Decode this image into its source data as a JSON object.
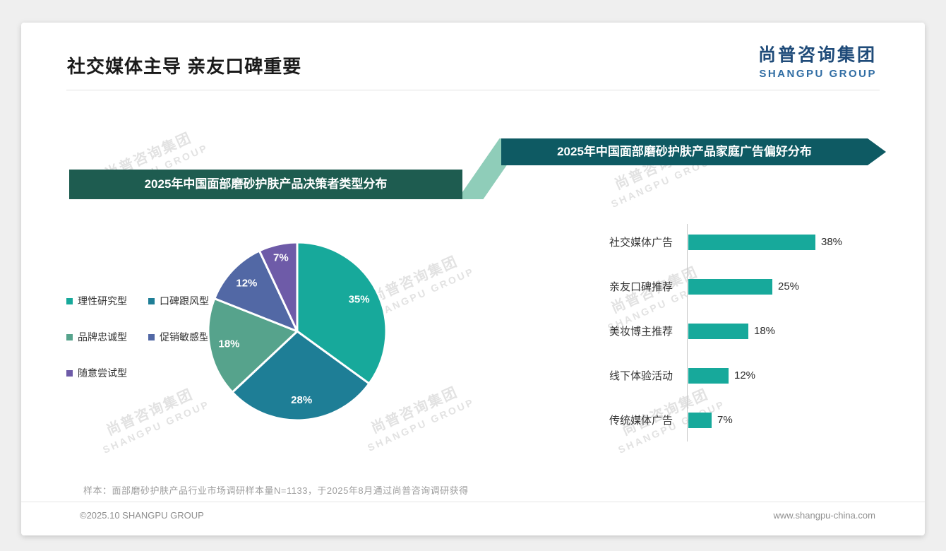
{
  "header": {
    "title": "社交媒体主导 亲友口碑重要"
  },
  "logo": {
    "cn": "尚普咨询集团",
    "en": "SHANGPU GROUP"
  },
  "watermark": {
    "cn": "尚普咨询集团",
    "en": "SHANGPU GROUP"
  },
  "footer": {
    "note": "样本：面部磨砂护肤产品行业市场调研样本量N=1133，于2025年8月通过尚普咨询调研获得",
    "copyright": "©2025.10 SHANGPU GROUP",
    "website": "www.shangpu-china.com"
  },
  "chart_data": [
    {
      "type": "pie",
      "title": "2025年中国面部磨砂护肤产品决策者类型分布",
      "labels": [
        "理性研究型",
        "口碑跟风型",
        "品牌忠诚型",
        "促销敏感型",
        "随意尝试型"
      ],
      "values": [
        35,
        28,
        18,
        12,
        7
      ],
      "unit": "%",
      "colors": [
        "#17a99b",
        "#1e7e96",
        "#56a38c",
        "#5268a5",
        "#6e5ba8"
      ],
      "legend_position": "left",
      "start_angle_deg": 0,
      "direction": "clockwise"
    },
    {
      "type": "bar",
      "orientation": "horizontal",
      "title": "2025年中国面部磨砂护肤产品家庭广告偏好分布",
      "categories": [
        "社交媒体广告",
        "亲友口碑推荐",
        "美妆博主推荐",
        "线下体验活动",
        "传统媒体广告"
      ],
      "values": [
        38,
        25,
        18,
        12,
        7
      ],
      "unit": "%",
      "bar_color": "#17a99b",
      "xlim": [
        0,
        45
      ],
      "grid": false
    }
  ]
}
